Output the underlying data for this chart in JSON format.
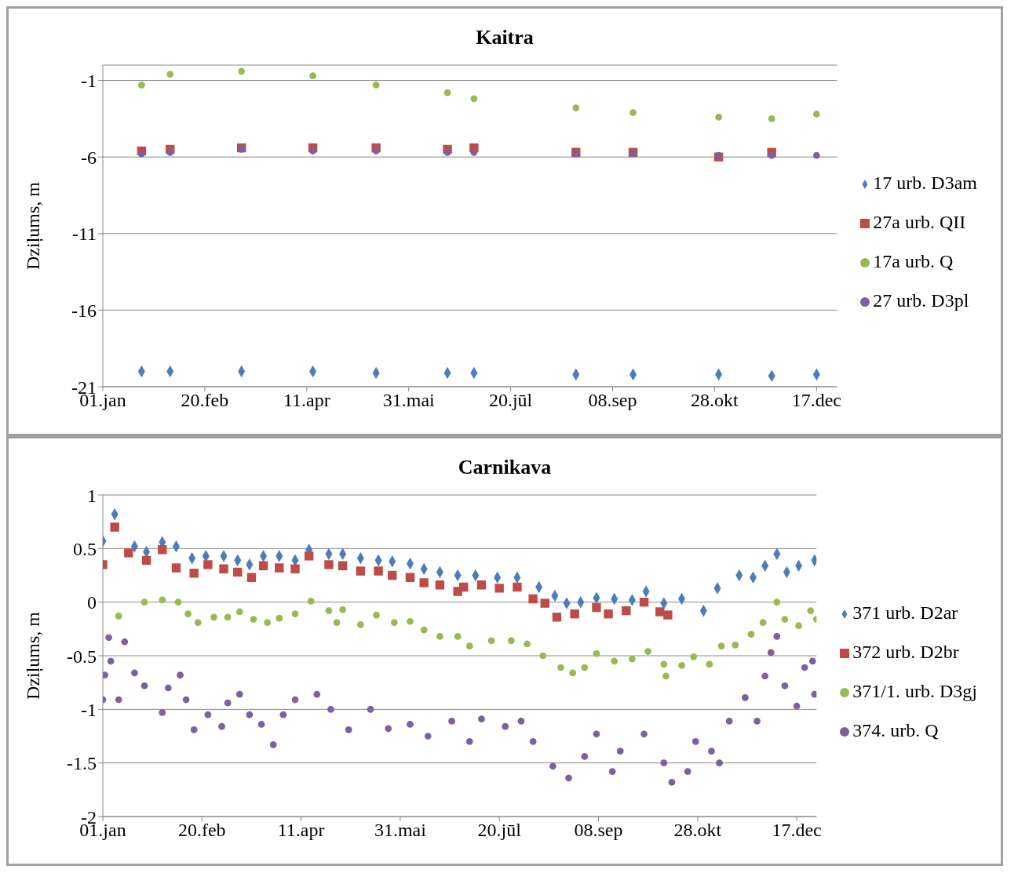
{
  "chart_data": [
    {
      "type": "scatter",
      "title": "Kaitra",
      "ylabel": "Dziļums, m",
      "xlim": [
        "--01-01",
        "--12-27"
      ],
      "xticks": [
        {
          "value": "--01-01",
          "label": "01.jan"
        },
        {
          "value": "--02-20",
          "label": "20.feb"
        },
        {
          "value": "--04-11",
          "label": "11.apr"
        },
        {
          "value": "--05-31",
          "label": "31.mai"
        },
        {
          "value": "--07-20",
          "label": "20.jūl"
        },
        {
          "value": "--09-08",
          "label": "08.sep"
        },
        {
          "value": "--10-28",
          "label": "28.okt"
        },
        {
          "value": "--12-17",
          "label": "17.dec"
        }
      ],
      "ylim": [
        -21,
        0
      ],
      "yticks": [
        -21,
        -16,
        -11,
        -6,
        -1
      ],
      "grid": "y",
      "legend": "right",
      "x": [
        "--01-20",
        "--02-03",
        "--03-10",
        "--04-14",
        "--05-15",
        "--06-19",
        "--07-02",
        "--08-21",
        "--09-18",
        "--10-30",
        "--11-25",
        "--12-17"
      ],
      "series": [
        {
          "name": "17 urb. D3am",
          "color": "#4a7ebb",
          "marker": "diamond",
          "values": [
            -20.0,
            -20.0,
            -20.0,
            -20.0,
            -20.1,
            -20.1,
            -20.1,
            -20.2,
            -20.2,
            -20.2,
            -20.3,
            -20.2
          ]
        },
        {
          "name": "27a urb. QII",
          "color": "#be4b48",
          "marker": "square",
          "values": [
            -5.6,
            -5.5,
            -5.4,
            -5.4,
            -5.4,
            -5.5,
            -5.4,
            -5.7,
            -5.7,
            -6.0,
            -5.7,
            null
          ]
        },
        {
          "name": "17a urb. Q",
          "color": "#98b954",
          "marker": "circle",
          "values": [
            -1.3,
            -0.6,
            -0.4,
            -0.7,
            -1.3,
            -1.8,
            -2.2,
            -2.8,
            -3.1,
            -3.4,
            -3.5,
            -3.2
          ]
        },
        {
          "name": "27 urb. D3pl",
          "color": "#7d60a0",
          "marker": "circle",
          "values": [
            -5.8,
            -5.7,
            -5.5,
            -5.6,
            -5.6,
            -5.7,
            -5.7,
            -5.8,
            -5.8,
            -5.9,
            -5.9,
            -5.9
          ]
        }
      ]
    },
    {
      "type": "scatter",
      "title": "Carnikava",
      "ylabel": "Dziļums, m",
      "xlim": [
        "--01-01",
        "--12-27"
      ],
      "xticks": [
        {
          "value": "--01-01",
          "label": "01.jan"
        },
        {
          "value": "--02-20",
          "label": "20.feb"
        },
        {
          "value": "--04-11",
          "label": "11.apr"
        },
        {
          "value": "--05-31",
          "label": "31.mai"
        },
        {
          "value": "--07-20",
          "label": "20.jūl"
        },
        {
          "value": "--09-08",
          "label": "08.sep"
        },
        {
          "value": "--10-28",
          "label": "28.okt"
        },
        {
          "value": "--12-17",
          "label": "17.dec"
        }
      ],
      "ylim": [
        -2,
        1
      ],
      "yticks": [
        -2,
        -1.5,
        -1,
        -0.5,
        0,
        0.5,
        1
      ],
      "grid": "y",
      "legend": "right",
      "series": [
        {
          "name": "371 urb. D2ar",
          "color": "#4a7ebb",
          "marker": "diamond",
          "x": [
            "--01-01",
            "--01-07",
            "--01-17",
            "--01-23",
            "--01-31",
            "--02-07",
            "--02-15",
            "--02-22",
            "--03-03",
            "--03-10",
            "--03-16",
            "--03-23",
            "--03-31",
            "--04-08",
            "--04-15",
            "--04-25",
            "--05-02",
            "--05-11",
            "--05-20",
            "--05-27",
            "--06-05",
            "--06-12",
            "--06-20",
            "--06-29",
            "--07-08",
            "--07-19",
            "--07-29",
            "--08-09",
            "--08-17",
            "--08-23",
            "--08-30",
            "--09-07",
            "--09-16",
            "--09-25",
            "--10-02",
            "--10-11",
            "--10-20",
            "--10-31",
            "--11-07",
            "--11-18",
            "--11-25",
            "--12-01",
            "--12-07",
            "--12-12",
            "--12-18",
            "--12-26"
          ],
          "values": [
            0.57,
            0.82,
            0.52,
            0.47,
            0.56,
            0.52,
            0.41,
            0.43,
            0.43,
            0.39,
            0.35,
            0.43,
            0.43,
            0.39,
            0.49,
            0.45,
            0.45,
            0.41,
            0.39,
            0.38,
            0.36,
            0.31,
            0.28,
            0.25,
            0.25,
            0.23,
            0.23,
            0.14,
            0.06,
            -0.01,
            0,
            0.04,
            0.03,
            0.02,
            0.1,
            -0.01,
            0.03,
            -0.08,
            0.13,
            0.25,
            0.23,
            0.34,
            0.45,
            0.28,
            0.34,
            0.39
          ]
        },
        {
          "name": "372 urb. D2br",
          "color": "#be4b48",
          "marker": "square",
          "x": [
            "--01-01",
            "--01-07",
            "--01-14",
            "--01-23",
            "--01-31",
            "--02-07",
            "--02-16",
            "--02-23",
            "--03-03",
            "--03-10",
            "--03-17",
            "--03-23",
            "--03-31",
            "--04-08",
            "--04-15",
            "--04-25",
            "--05-02",
            "--05-11",
            "--05-20",
            "--05-27",
            "--06-05",
            "--06-12",
            "--06-20",
            "--06-29",
            "--07-02",
            "--07-11",
            "--07-20",
            "--07-29",
            "--08-06",
            "--08-12",
            "--08-18",
            "--08-27",
            "--09-07",
            "--09-13",
            "--09-22",
            "--10-01",
            "--10-09",
            "--10-13"
          ],
          "values": [
            0.35,
            0.7,
            0.46,
            0.39,
            0.49,
            0.32,
            0.27,
            0.35,
            0.31,
            0.28,
            0.23,
            0.34,
            0.32,
            0.31,
            0.43,
            0.35,
            0.34,
            0.29,
            0.29,
            0.25,
            0.23,
            0.18,
            0.16,
            0.1,
            0.14,
            0.16,
            0.13,
            0.14,
            0.03,
            -0.01,
            -0.14,
            -0.11,
            -0.05,
            -0.11,
            -0.08,
            0,
            -0.09,
            -0.12
          ]
        },
        {
          "name": "371/1. urb. D3gj",
          "color": "#98b954",
          "marker": "circle",
          "x": [
            "--01-09",
            "--01-22",
            "--01-31",
            "--02-08",
            "--02-13",
            "--02-18",
            "--02-26",
            "--03-05",
            "--03-11",
            "--03-18",
            "--03-25",
            "--03-31",
            "--04-08",
            "--04-16",
            "--04-25",
            "--04-29",
            "--05-02",
            "--05-11",
            "--05-19",
            "--05-28",
            "--06-05",
            "--06-12",
            "--06-20",
            "--06-29",
            "--07-05",
            "--07-16",
            "--07-26",
            "--08-03",
            "--08-11",
            "--08-20",
            "--08-26",
            "--09-01",
            "--09-07",
            "--09-16",
            "--09-25",
            "--10-03",
            "--10-11",
            "--10-12",
            "--10-20",
            "--10-26",
            "--11-03",
            "--11-09",
            "--11-16",
            "--11-24",
            "--11-30",
            "--12-07",
            "--12-11",
            "--12-18",
            "--12-24",
            "--12-27"
          ],
          "values": [
            -0.13,
            0,
            0.02,
            0,
            -0.11,
            -0.19,
            -0.14,
            -0.14,
            -0.09,
            -0.16,
            -0.19,
            -0.15,
            -0.11,
            0.01,
            -0.08,
            -0.19,
            -0.07,
            -0.21,
            -0.12,
            -0.19,
            -0.18,
            -0.26,
            -0.32,
            -0.32,
            -0.41,
            -0.36,
            -0.36,
            -0.39,
            -0.5,
            -0.61,
            -0.66,
            -0.61,
            -0.48,
            -0.55,
            -0.53,
            -0.46,
            -0.58,
            -0.69,
            -0.59,
            -0.51,
            -0.58,
            -0.41,
            -0.4,
            -0.3,
            -0.19,
            0,
            -0.16,
            -0.22,
            -0.08,
            -0.16
          ]
        },
        {
          "name": "374. urb. Q",
          "color": "#7d60a0",
          "marker": "circle",
          "x": [
            "--01-01",
            "--01-02",
            "--01-04",
            "--01-05",
            "--01-09",
            "--01-12",
            "--01-17",
            "--01-22",
            "--01-31",
            "--02-03",
            "--02-09",
            "--02-12",
            "--02-16",
            "--02-23",
            "--03-02",
            "--03-05",
            "--03-11",
            "--03-16",
            "--03-22",
            "--03-28",
            "--04-02",
            "--04-08",
            "--04-19",
            "--04-26",
            "--05-05",
            "--05-16",
            "--05-25",
            "--06-05",
            "--06-14",
            "--06-26",
            "--07-05",
            "--07-11",
            "--07-23",
            "--07-31",
            "--08-06",
            "--08-16",
            "--08-24",
            "--09-01",
            "--09-07",
            "--09-15",
            "--09-19",
            "--10-01",
            "--10-11",
            "--10-15",
            "--10-23",
            "--10-27",
            "--11-04",
            "--11-08",
            "--11-13",
            "--11-21",
            "--11-27",
            "--12-01",
            "--12-04",
            "--12-07",
            "--12-11",
            "--12-17",
            "--12-21",
            "--12-25",
            "--12-26"
          ],
          "values": [
            -0.91,
            -0.68,
            -0.33,
            -0.55,
            -0.91,
            -0.37,
            -0.66,
            -0.78,
            -1.03,
            -0.8,
            -0.68,
            -0.91,
            -1.19,
            -1.05,
            -1.16,
            -0.94,
            -0.86,
            -1.05,
            -1.14,
            -1.33,
            -1.05,
            -0.91,
            -0.86,
            -1.0,
            -1.19,
            -1.0,
            -1.18,
            -1.14,
            -1.25,
            -1.11,
            -1.3,
            -1.09,
            -1.16,
            -1.11,
            -1.3,
            -1.53,
            -1.64,
            -1.44,
            -1.23,
            -1.58,
            -1.39,
            -1.23,
            -1.5,
            -1.68,
            -1.58,
            -1.3,
            -1.39,
            -1.5,
            -1.11,
            -0.89,
            -1.11,
            -0.69,
            -0.47,
            -0.32,
            -0.78,
            -0.97,
            -0.61,
            -0.55,
            -0.86
          ]
        }
      ]
    }
  ]
}
